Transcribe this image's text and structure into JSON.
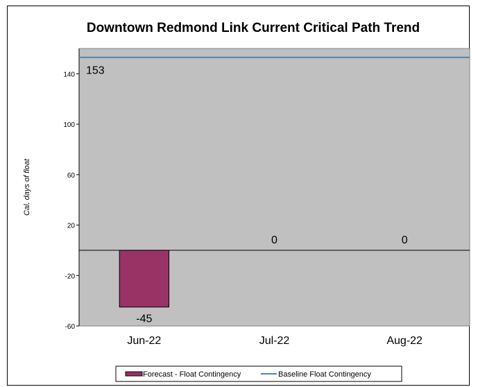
{
  "chart_data": {
    "type": "bar",
    "title": "Downtown Redmond Link Current Critical Path Trend",
    "ylabel": "Cal. days of float",
    "xlabel": "",
    "categories": [
      "Jun-22",
      "Jul-22",
      "Aug-22"
    ],
    "ylim": [
      -60,
      160
    ],
    "yticks": [
      -60,
      -20,
      20,
      60,
      100,
      140
    ],
    "grid": false,
    "legend_position": "bottom",
    "series": [
      {
        "name": "Forecast - Float Contingency",
        "type": "bar",
        "values": [
          -45,
          0,
          0
        ],
        "color": "#993366"
      },
      {
        "name": "Baseline Float Contingency",
        "type": "line",
        "values": [
          153,
          153,
          153
        ],
        "color": "#4F81BD"
      }
    ],
    "baseline_label": "153",
    "plot_background": "#C0C0C0"
  }
}
